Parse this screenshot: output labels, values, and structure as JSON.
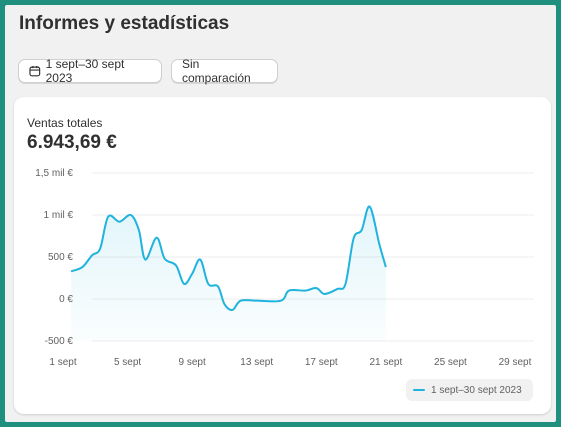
{
  "page": {
    "title": "Informes y estadísticas"
  },
  "toolbar": {
    "date_range_label": "1 sept–30 sept 2023",
    "comparison_label": "Sin comparación"
  },
  "card": {
    "metric_label": "Ventas totales",
    "metric_value": "6.943,69 €"
  },
  "colors": {
    "series": "#1fb3dd",
    "background_border": "#1f8f7e"
  },
  "icons": {
    "date": "calendar-icon"
  },
  "legend": {
    "label": "1 sept–30 sept 2023"
  },
  "chart_data": {
    "type": "line",
    "ylim": [
      -500,
      1500
    ],
    "yticks": [
      {
        "value": 1500,
        "label": "1,5 mil €"
      },
      {
        "value": 1000,
        "label": "1 mil €"
      },
      {
        "value": 500,
        "label": "500 €"
      },
      {
        "value": 0,
        "label": "0 €"
      },
      {
        "value": -500,
        "label": "-500 €"
      }
    ],
    "xticks": [
      {
        "day": 1,
        "label": "1 sept"
      },
      {
        "day": 5,
        "label": "5 sept"
      },
      {
        "day": 9,
        "label": "9 sept"
      },
      {
        "day": 13,
        "label": "13 sept"
      },
      {
        "day": 17,
        "label": "17 sept"
      },
      {
        "day": 21,
        "label": "21 sept"
      },
      {
        "day": 25,
        "label": "25 sept"
      },
      {
        "day": 29,
        "label": "29 sept"
      }
    ],
    "grid": "horizontal",
    "legend_position": "bottom-right",
    "series": [
      {
        "name": "1 sept–30 sept 2023",
        "points": [
          [
            1.5,
            330
          ],
          [
            2.2,
            380
          ],
          [
            2.8,
            520
          ],
          [
            3.3,
            600
          ],
          [
            3.8,
            980
          ],
          [
            4.5,
            920
          ],
          [
            5.2,
            1000
          ],
          [
            5.7,
            820
          ],
          [
            6.1,
            470
          ],
          [
            6.8,
            730
          ],
          [
            7.3,
            480
          ],
          [
            8.0,
            400
          ],
          [
            8.5,
            180
          ],
          [
            9.0,
            300
          ],
          [
            9.5,
            470
          ],
          [
            10.0,
            180
          ],
          [
            10.6,
            150
          ],
          [
            11.0,
            -60
          ],
          [
            11.5,
            -130
          ],
          [
            12.0,
            -20
          ],
          [
            13.0,
            -20
          ],
          [
            14.5,
            -20
          ],
          [
            15.0,
            100
          ],
          [
            16.0,
            100
          ],
          [
            16.7,
            130
          ],
          [
            17.2,
            60
          ],
          [
            18.0,
            120
          ],
          [
            18.5,
            180
          ],
          [
            19.0,
            720
          ],
          [
            19.5,
            820
          ],
          [
            20.0,
            1100
          ],
          [
            20.6,
            650
          ],
          [
            21.0,
            380
          ]
        ]
      }
    ]
  }
}
